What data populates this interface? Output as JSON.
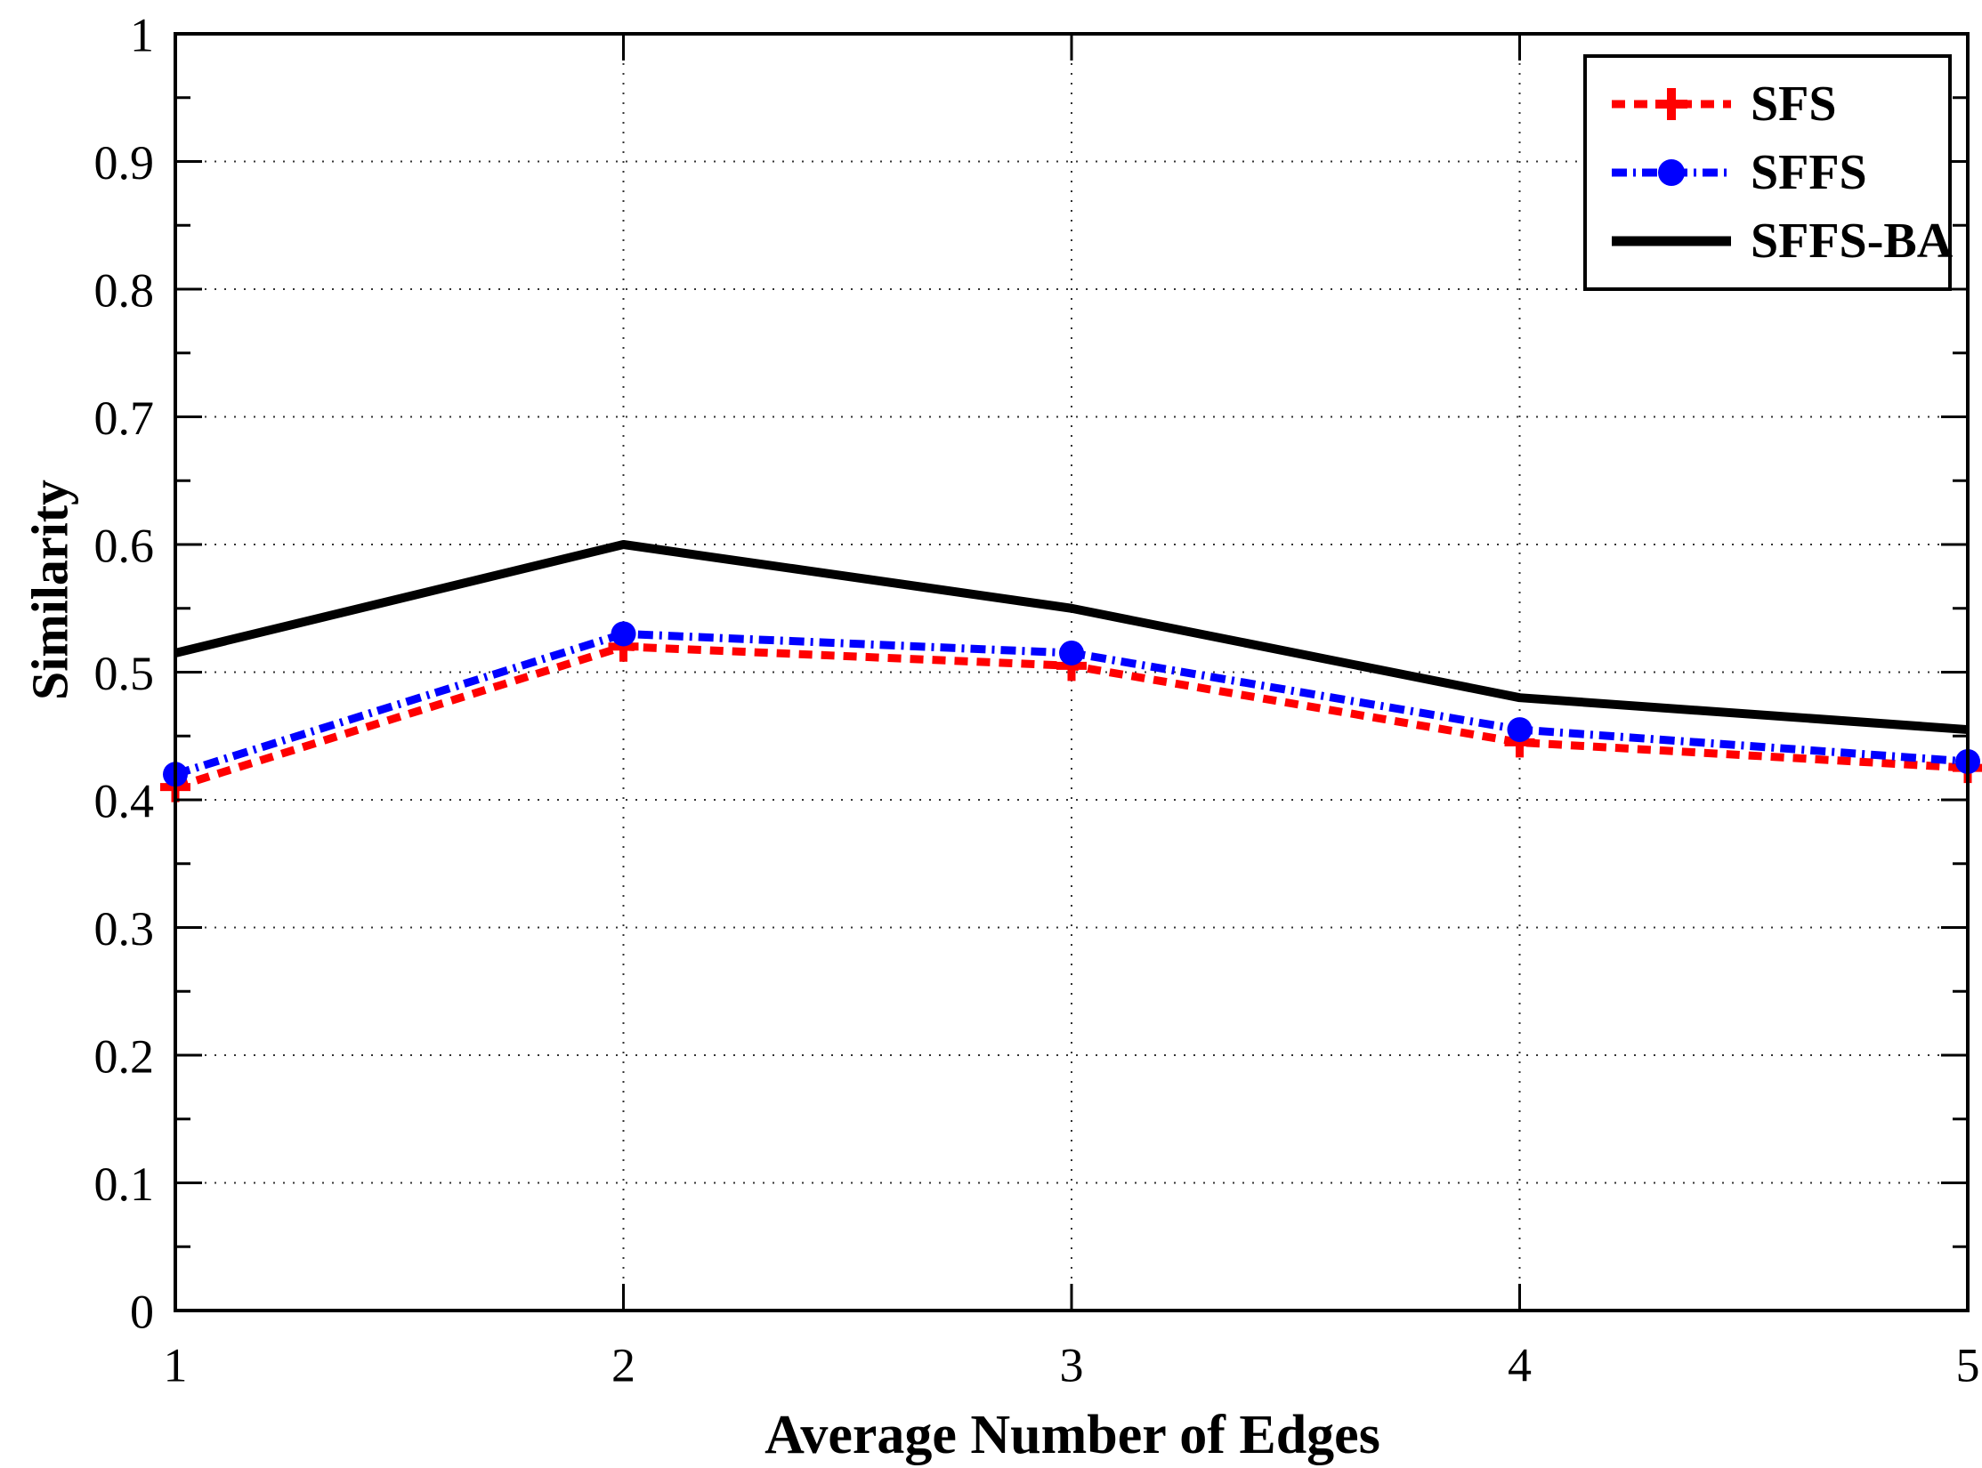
{
  "chart_data": {
    "type": "line",
    "title": "",
    "xlabel": "Average Number of Edges",
    "ylabel": "Similarity",
    "x": [
      1,
      2,
      3,
      4,
      5
    ],
    "xlim": [
      1,
      5
    ],
    "ylim": [
      0,
      1
    ],
    "xticks": [
      1,
      2,
      3,
      4,
      5
    ],
    "xtick_labels": [
      "1",
      "2",
      "3",
      "4",
      "5"
    ],
    "yticks": [
      0,
      0.1,
      0.2,
      0.3,
      0.4,
      0.5,
      0.6,
      0.7,
      0.8,
      0.9,
      1
    ],
    "ytick_labels": [
      "0",
      "0.1",
      "0.2",
      "0.3",
      "0.4",
      "0.5",
      "0.6",
      "0.7",
      "0.8",
      "0.9",
      "1"
    ],
    "y_minor_tick_step": 0.05,
    "grid": "dotted at major ticks",
    "legend_position": "top-right",
    "axis_color": "#000000",
    "background_color": "#ffffff",
    "series": [
      {
        "name": "SFS",
        "color": "#ff0000",
        "line_style": "dashed",
        "marker": "plus",
        "values": [
          0.41,
          0.52,
          0.505,
          0.445,
          0.425
        ]
      },
      {
        "name": "SFFS",
        "color": "#0000ff",
        "line_style": "dashdot",
        "marker": "circle",
        "values": [
          0.42,
          0.53,
          0.515,
          0.455,
          0.43
        ]
      },
      {
        "name": "SFFS-BA",
        "color": "#000000",
        "line_style": "solid",
        "marker": "none",
        "values": [
          0.515,
          0.6,
          0.55,
          0.48,
          0.455
        ]
      }
    ]
  }
}
